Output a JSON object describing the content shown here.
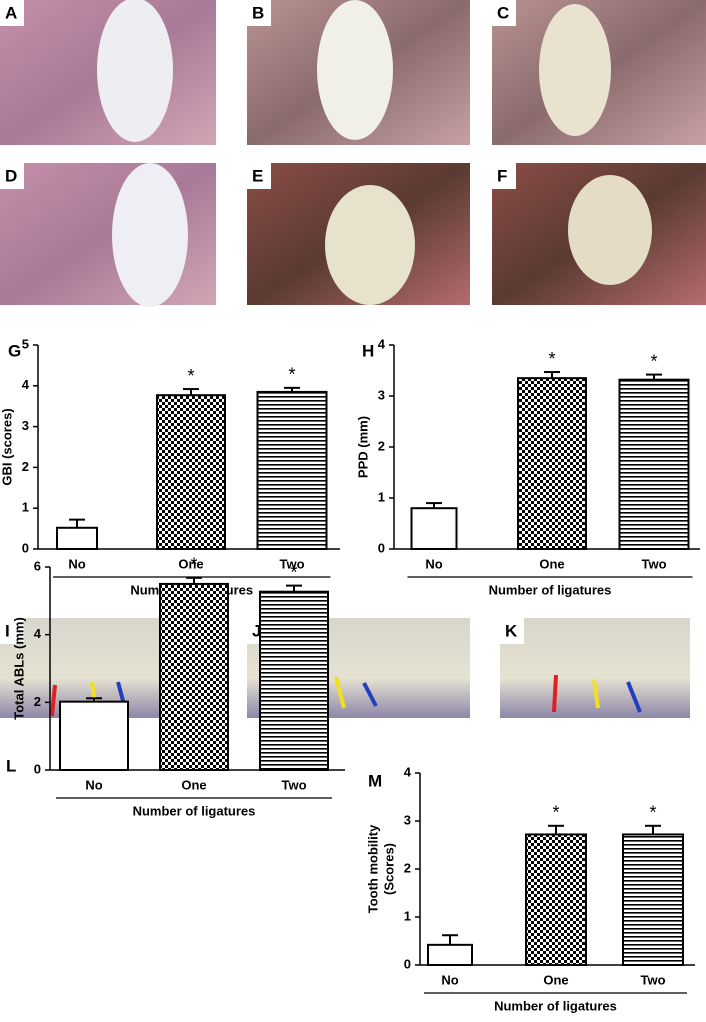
{
  "photo_panels": [
    "A",
    "B",
    "C",
    "D",
    "E",
    "F",
    "I",
    "J",
    "K"
  ],
  "chart_data": [
    {
      "type": "bar",
      "panel": "G",
      "ylabel": "GBI (scores)",
      "xlabel": "Number of ligatures",
      "categories": [
        "No",
        "One",
        "Two"
      ],
      "values": [
        0.52,
        3.77,
        3.85
      ],
      "errors": [
        0.2,
        0.15,
        0.1
      ],
      "significance": [
        null,
        "*",
        "*"
      ],
      "patterns": [
        "none",
        "checker",
        "hstripe"
      ],
      "ylim": [
        0,
        5
      ],
      "yticks": [
        0,
        1,
        2,
        3,
        4,
        5
      ]
    },
    {
      "type": "bar",
      "panel": "H",
      "ylabel": "PPD (mm)",
      "xlabel": "Number of ligatures",
      "categories": [
        "No",
        "One",
        "Two"
      ],
      "values": [
        0.8,
        3.35,
        3.32
      ],
      "errors": [
        0.1,
        0.12,
        0.1
      ],
      "significance": [
        null,
        "*",
        "*"
      ],
      "patterns": [
        "none",
        "checker",
        "hstripe"
      ],
      "ylim": [
        0,
        4
      ],
      "yticks": [
        0,
        1,
        2,
        3,
        4
      ]
    },
    {
      "type": "bar",
      "panel": "L",
      "ylabel": "Total ABLs (mm)",
      "xlabel": "Number of ligatures",
      "categories": [
        "No",
        "One",
        "Two"
      ],
      "values": [
        2.02,
        5.5,
        5.27
      ],
      "errors": [
        0.1,
        0.18,
        0.18
      ],
      "significance": [
        null,
        "*",
        "*"
      ],
      "patterns": [
        "none",
        "checker",
        "hstripe"
      ],
      "ylim": [
        0,
        6
      ],
      "yticks": [
        0,
        2,
        4,
        6
      ]
    },
    {
      "type": "bar",
      "panel": "M",
      "ylabel": [
        "Tooth mobility",
        "(Scores)"
      ],
      "xlabel": "Number of ligatures",
      "categories": [
        "No",
        "One",
        "Two"
      ],
      "values": [
        0.42,
        2.72,
        2.72
      ],
      "errors": [
        0.2,
        0.18,
        0.18
      ],
      "significance": [
        null,
        "*",
        "*"
      ],
      "patterns": [
        "none",
        "checker",
        "hstripe"
      ],
      "ylim": [
        0,
        4
      ],
      "yticks": [
        0,
        1,
        2,
        3,
        4
      ],
      "xlabel_bold": false
    }
  ]
}
